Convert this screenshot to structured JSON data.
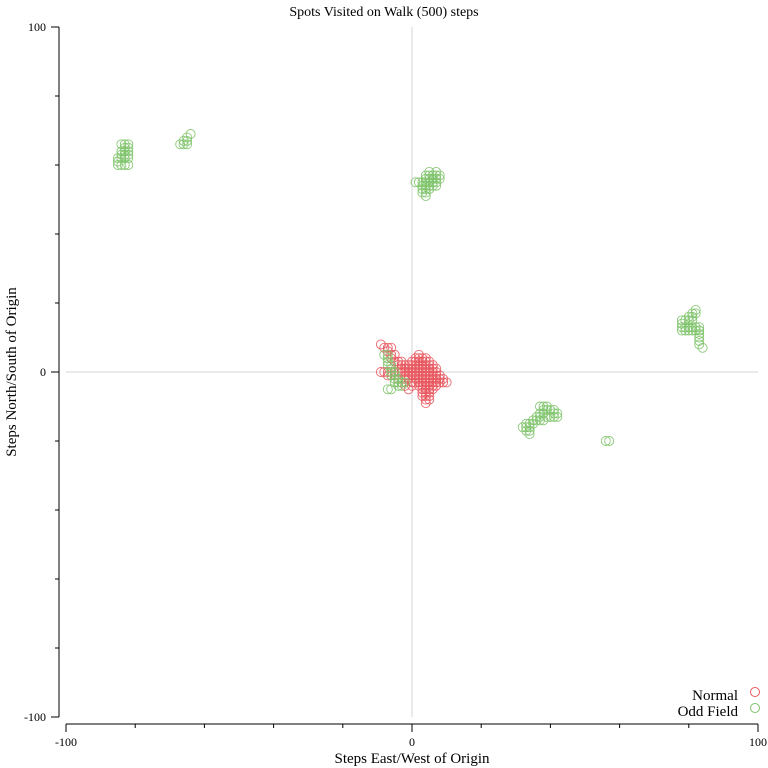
{
  "chart_data": {
    "type": "scatter",
    "title": "Spots Visited on Walk (500) steps",
    "xlabel": "Steps East/West of Origin",
    "ylabel": "Steps North/South of Origin",
    "xlim": [
      -100,
      100
    ],
    "ylim": [
      -100,
      100
    ],
    "x_tick_labels": [
      {
        "value": -100,
        "label": "-100"
      },
      {
        "value": 0,
        "label": "0"
      },
      {
        "value": 100,
        "label": "100"
      }
    ],
    "y_tick_labels": [
      {
        "value": 100,
        "label": "100"
      },
      {
        "value": 0,
        "label": "0"
      },
      {
        "value": -100,
        "label": "-100"
      }
    ],
    "x_minor_ticks": [
      -80,
      -60,
      -40,
      -20,
      20,
      40,
      60,
      80
    ],
    "y_minor_ticks": [
      80,
      60,
      40,
      20,
      -20,
      -40,
      -60,
      -80
    ],
    "zero_lines": true,
    "legend_position": "bottom-right",
    "series": [
      {
        "name": "Normal",
        "color": "#e8585f",
        "points": [
          [
            -9,
            0
          ],
          [
            -8,
            0
          ],
          [
            -7,
            0
          ],
          [
            -6,
            0
          ],
          [
            -5,
            0
          ],
          [
            -4,
            0
          ],
          [
            -3,
            0
          ],
          [
            -2,
            0
          ],
          [
            -1,
            0
          ],
          [
            0,
            0
          ],
          [
            1,
            0
          ],
          [
            2,
            0
          ],
          [
            3,
            0
          ],
          [
            4,
            0
          ],
          [
            5,
            0
          ],
          [
            6,
            0
          ],
          [
            7,
            0
          ],
          [
            -9,
            8
          ],
          [
            -8,
            7
          ],
          [
            -7,
            7
          ],
          [
            -6,
            7
          ],
          [
            -7,
            6
          ],
          [
            -6,
            5
          ],
          [
            -5,
            5
          ],
          [
            -6,
            4
          ],
          [
            -5,
            3
          ],
          [
            -4,
            3
          ],
          [
            -3,
            3
          ],
          [
            -4,
            2
          ],
          [
            -3,
            2
          ],
          [
            -2,
            2
          ],
          [
            -1,
            2
          ],
          [
            -3,
            1
          ],
          [
            -2,
            1
          ],
          [
            -1,
            1
          ],
          [
            -2,
            -1
          ],
          [
            -1,
            -1
          ],
          [
            0,
            -1
          ],
          [
            -2,
            -2
          ],
          [
            -1,
            -2
          ],
          [
            0,
            -3
          ],
          [
            0,
            -4
          ],
          [
            -1,
            -5
          ],
          [
            -2,
            -4
          ],
          [
            -3,
            -3
          ],
          [
            -4,
            -2
          ],
          [
            -5,
            -1
          ],
          [
            -6,
            -1
          ],
          [
            -7,
            -1
          ],
          [
            0,
            1
          ],
          [
            0,
            2
          ],
          [
            0,
            3
          ],
          [
            1,
            1
          ],
          [
            1,
            2
          ],
          [
            1,
            3
          ],
          [
            1,
            4
          ],
          [
            2,
            1
          ],
          [
            2,
            2
          ],
          [
            2,
            3
          ],
          [
            2,
            4
          ],
          [
            2,
            5
          ],
          [
            3,
            1
          ],
          [
            3,
            2
          ],
          [
            3,
            3
          ],
          [
            3,
            4
          ],
          [
            4,
            1
          ],
          [
            4,
            2
          ],
          [
            4,
            3
          ],
          [
            4,
            4
          ],
          [
            5,
            1
          ],
          [
            5,
            2
          ],
          [
            5,
            3
          ],
          [
            6,
            1
          ],
          [
            6,
            2
          ],
          [
            7,
            1
          ],
          [
            1,
            -1
          ],
          [
            1,
            -2
          ],
          [
            1,
            -3
          ],
          [
            2,
            -1
          ],
          [
            2,
            -2
          ],
          [
            2,
            -3
          ],
          [
            2,
            -4
          ],
          [
            3,
            -1
          ],
          [
            3,
            -2
          ],
          [
            3,
            -3
          ],
          [
            3,
            -4
          ],
          [
            3,
            -5
          ],
          [
            3,
            -6
          ],
          [
            3,
            -7
          ],
          [
            4,
            -1
          ],
          [
            4,
            -2
          ],
          [
            4,
            -3
          ],
          [
            4,
            -4
          ],
          [
            4,
            -5
          ],
          [
            4,
            -6
          ],
          [
            4,
            -7
          ],
          [
            4,
            -8
          ],
          [
            4,
            -9
          ],
          [
            5,
            -1
          ],
          [
            5,
            -2
          ],
          [
            5,
            -3
          ],
          [
            5,
            -4
          ],
          [
            5,
            -5
          ],
          [
            5,
            -6
          ],
          [
            5,
            -7
          ],
          [
            5,
            -8
          ],
          [
            6,
            -1
          ],
          [
            6,
            -2
          ],
          [
            6,
            -3
          ],
          [
            6,
            -4
          ],
          [
            6,
            -5
          ],
          [
            7,
            -1
          ],
          [
            7,
            -2
          ],
          [
            7,
            -3
          ],
          [
            7,
            -4
          ],
          [
            8,
            -1
          ],
          [
            8,
            -2
          ],
          [
            8,
            -3
          ],
          [
            9,
            -2
          ],
          [
            9,
            -3
          ],
          [
            10,
            -3
          ]
        ]
      },
      {
        "name": "Odd Field",
        "color": "#7ec36a",
        "points": [
          [
            -85,
            60
          ],
          [
            -84,
            60
          ],
          [
            -83,
            60
          ],
          [
            -82,
            60
          ],
          [
            -85,
            61
          ],
          [
            -84,
            62
          ],
          [
            -85,
            62
          ],
          [
            -84,
            63
          ],
          [
            -83,
            63
          ],
          [
            -82,
            63
          ],
          [
            -84,
            64
          ],
          [
            -83,
            64
          ],
          [
            -82,
            64
          ],
          [
            -83,
            65
          ],
          [
            -82,
            65
          ],
          [
            -84,
            66
          ],
          [
            -83,
            66
          ],
          [
            -82,
            66
          ],
          [
            -83,
            62
          ],
          [
            -82,
            62
          ],
          [
            -67,
            66
          ],
          [
            -66,
            66
          ],
          [
            -65,
            66
          ],
          [
            -66,
            67
          ],
          [
            -65,
            67
          ],
          [
            -65,
            68
          ],
          [
            -64,
            69
          ],
          [
            1,
            55
          ],
          [
            2,
            55
          ],
          [
            3,
            55
          ],
          [
            4,
            55
          ],
          [
            5,
            55
          ],
          [
            6,
            55
          ],
          [
            7,
            55
          ],
          [
            3,
            54
          ],
          [
            4,
            54
          ],
          [
            5,
            54
          ],
          [
            6,
            54
          ],
          [
            7,
            54
          ],
          [
            3,
            53
          ],
          [
            4,
            53
          ],
          [
            5,
            53
          ],
          [
            3,
            52
          ],
          [
            4,
            52
          ],
          [
            4,
            51
          ],
          [
            4,
            56
          ],
          [
            5,
            56
          ],
          [
            6,
            56
          ],
          [
            7,
            56
          ],
          [
            4,
            57
          ],
          [
            5,
            57
          ],
          [
            6,
            57
          ],
          [
            7,
            57
          ],
          [
            7,
            58
          ],
          [
            5,
            58
          ],
          [
            8,
            56
          ],
          [
            8,
            57
          ],
          [
            -8,
            5
          ],
          [
            -7,
            5
          ],
          [
            -7,
            4
          ],
          [
            -7,
            3
          ],
          [
            -7,
            2
          ],
          [
            -6,
            2
          ],
          [
            -6,
            1
          ],
          [
            -6,
            0
          ],
          [
            -5,
            0
          ],
          [
            -6,
            -1
          ],
          [
            -5,
            -1
          ],
          [
            -5,
            -2
          ],
          [
            -4,
            -2
          ],
          [
            -5,
            -3
          ],
          [
            -4,
            -3
          ],
          [
            -3,
            -3
          ],
          [
            -2,
            -3
          ],
          [
            -4,
            -4
          ],
          [
            -3,
            -4
          ],
          [
            -6,
            -5
          ],
          [
            -7,
            -5
          ],
          [
            32,
            -16
          ],
          [
            33,
            -16
          ],
          [
            34,
            -16
          ],
          [
            33,
            -17
          ],
          [
            34,
            -17
          ],
          [
            34,
            -18
          ],
          [
            33,
            -15
          ],
          [
            34,
            -15
          ],
          [
            35,
            -15
          ],
          [
            35,
            -14
          ],
          [
            36,
            -14
          ],
          [
            36,
            -13
          ],
          [
            37,
            -13
          ],
          [
            37,
            -12
          ],
          [
            38,
            -12
          ],
          [
            38,
            -11
          ],
          [
            37,
            -10
          ],
          [
            38,
            -10
          ],
          [
            39,
            -10
          ],
          [
            39,
            -11
          ],
          [
            40,
            -11
          ],
          [
            41,
            -11
          ],
          [
            41,
            -12
          ],
          [
            42,
            -12
          ],
          [
            42,
            -13
          ],
          [
            41,
            -13
          ],
          [
            40,
            -13
          ],
          [
            39,
            -13
          ],
          [
            38,
            -14
          ],
          [
            37,
            -14
          ],
          [
            56,
            -20
          ],
          [
            57,
            -20
          ],
          [
            78,
            13
          ],
          [
            79,
            13
          ],
          [
            80,
            13
          ],
          [
            81,
            13
          ],
          [
            82,
            13
          ],
          [
            83,
            13
          ],
          [
            78,
            14
          ],
          [
            78,
            15
          ],
          [
            79,
            15
          ],
          [
            80,
            15
          ],
          [
            81,
            15
          ],
          [
            80,
            16
          ],
          [
            81,
            16
          ],
          [
            81,
            17
          ],
          [
            82,
            17
          ],
          [
            82,
            18
          ],
          [
            83,
            12
          ],
          [
            83,
            11
          ],
          [
            83,
            10
          ],
          [
            83,
            9
          ],
          [
            83,
            8
          ],
          [
            84,
            7
          ],
          [
            82,
            12
          ],
          [
            83,
            12
          ],
          [
            81,
            12
          ],
          [
            80,
            12
          ],
          [
            79,
            12
          ],
          [
            78,
            12
          ]
        ]
      }
    ]
  }
}
